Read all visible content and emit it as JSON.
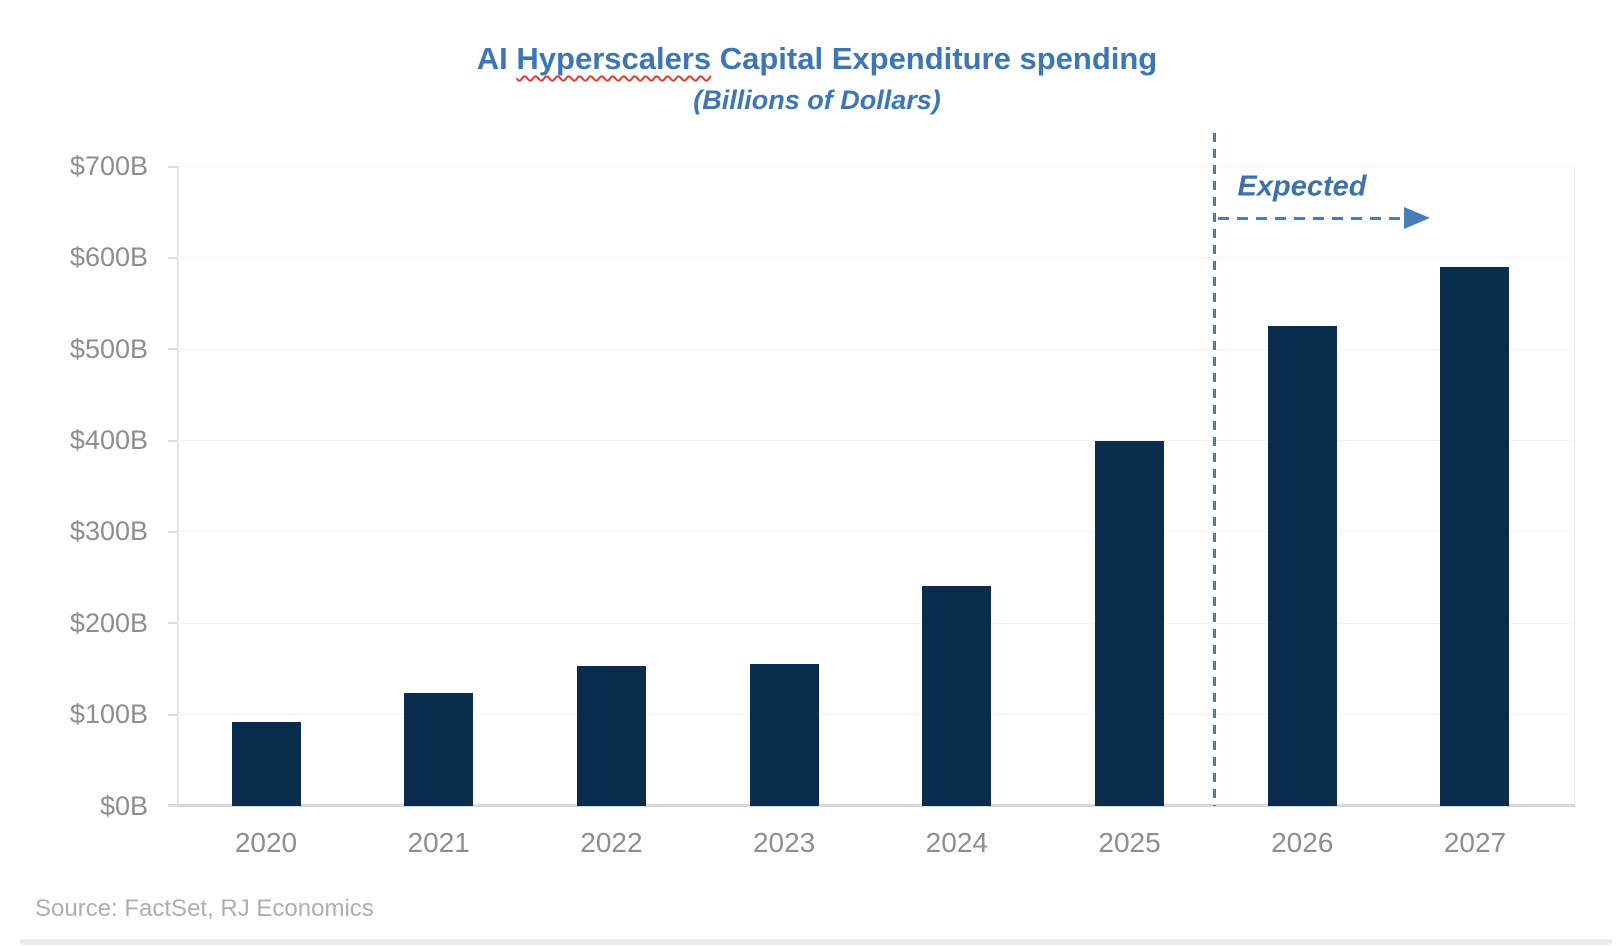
{
  "title": {
    "prefix": "AI ",
    "squiggle_word": "Hyperscalers",
    "suffix": " Capital Expenditure spending",
    "subtitle": "(Billions of Dollars)"
  },
  "annotation": {
    "label": "Expected"
  },
  "source": "Source: FactSet, RJ Economics",
  "colors": {
    "bar_navy": "#0a2c4d",
    "title_blue": "#3c76b5",
    "annotation_blue": "#4a7ebb",
    "squiggle_red": "#e03c31",
    "axis_text_gray": "#8e8e8e",
    "source_gray": "#b2afab",
    "baseline_gray": "#d8d8d8"
  },
  "chart_data": {
    "type": "bar",
    "title": "AI Hyperscalers Capital Expenditure spending",
    "subtitle": "(Billions of Dollars)",
    "categories": [
      "2020",
      "2021",
      "2022",
      "2023",
      "2024",
      "2025",
      "2026",
      "2027"
    ],
    "values": [
      92,
      124,
      153,
      155,
      241,
      400,
      525,
      590
    ],
    "unit": "billions of dollars",
    "xlabel": "",
    "ylabel": "",
    "ylim": [
      0,
      700
    ],
    "y_tick_step": 100,
    "y_tick_labels": [
      "$0B",
      "$100B",
      "$200B",
      "$300B",
      "$400B",
      "$500B",
      "$600B",
      "$700B"
    ],
    "grid": "faint horizontal gridlines, light gray baseline",
    "legend": "none",
    "annotation": {
      "label": "Expected",
      "applies_to": [
        "2026",
        "2027"
      ],
      "divider_between": [
        "2025",
        "2026"
      ],
      "style": "dashed blue vertical divider with dashed right-pointing arrow"
    }
  }
}
